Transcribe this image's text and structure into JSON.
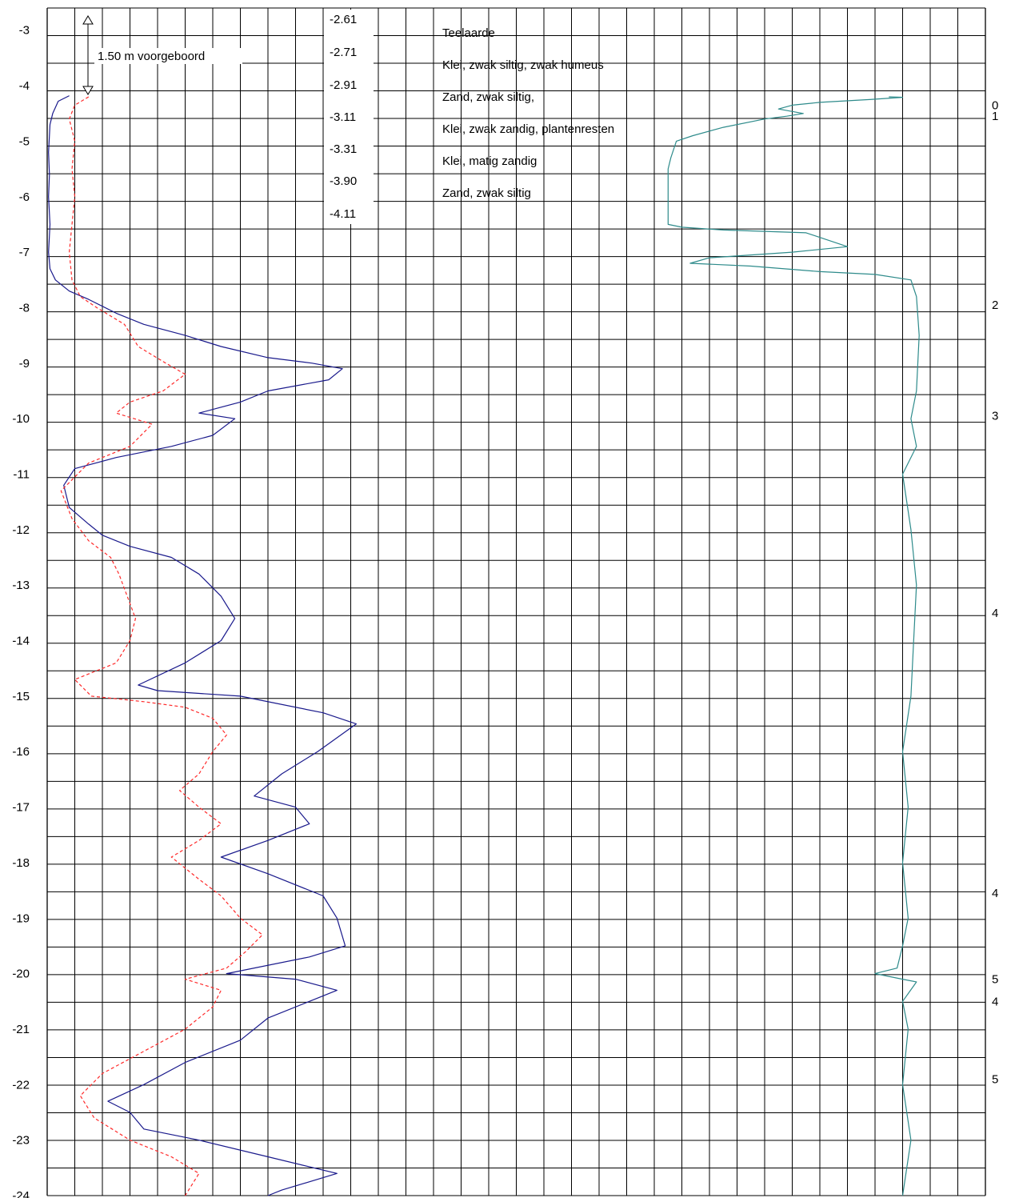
{
  "chart_data": {
    "type": "line",
    "title": "",
    "xlabel": "",
    "ylabel": "",
    "ylim": [
      -24,
      -2.6
    ],
    "y_ticks": [
      -3,
      -4,
      -5,
      -6,
      -7,
      -8,
      -9,
      -10,
      -11,
      -12,
      -13,
      -14,
      -15,
      -16,
      -17,
      -18,
      -19,
      -20,
      -21,
      -22,
      -23,
      -24
    ],
    "grid": true,
    "predrill_label": "1.50  m voorgeboord",
    "layer_levels": [
      "-2.61",
      "-2.71",
      "-2.91",
      "-3.11",
      "-3.31",
      "-3.90",
      "-4.11"
    ],
    "layer_descriptions": [
      "Teelaarde",
      "Klei, zwak siltig, zwak humeus",
      "Zand, zwak siltig,",
      "Klei, zwak zandig, plantenresten",
      "Klei, matig zandig",
      "Zand, zwak siltig"
    ],
    "right_labels": [
      {
        "text": "0",
        "y": -4.35
      },
      {
        "text": "1",
        "y": -4.55
      },
      {
        "text": "2",
        "y": -7.95
      },
      {
        "text": "3",
        "y": -9.95
      },
      {
        "text": "4",
        "y": -13.5
      },
      {
        "text": "4",
        "y": -18.55
      },
      {
        "text": "5",
        "y": -20.1
      },
      {
        "text": "4",
        "y": -20.5
      },
      {
        "text": "5",
        "y": -21.9
      }
    ],
    "series": [
      {
        "color": "#1a1a8c",
        "style": "solid",
        "points": [
          [
            0.8,
            -4.18
          ],
          [
            0.4,
            -4.28
          ],
          [
            0.2,
            -4.5
          ],
          [
            0.1,
            -4.7
          ],
          [
            0.05,
            -5.2
          ],
          [
            0.08,
            -5.6
          ],
          [
            0.05,
            -6.0
          ],
          [
            0.1,
            -6.5
          ],
          [
            0.05,
            -7.0
          ],
          [
            0.1,
            -7.3
          ],
          [
            0.3,
            -7.5
          ],
          [
            0.8,
            -7.7
          ],
          [
            1.5,
            -7.85
          ],
          [
            2.5,
            -8.1
          ],
          [
            3.5,
            -8.3
          ],
          [
            5.0,
            -8.5
          ],
          [
            6.3,
            -8.7
          ],
          [
            8.0,
            -8.9
          ],
          [
            9.6,
            -9.0
          ],
          [
            10.7,
            -9.1
          ],
          [
            10.2,
            -9.3
          ],
          [
            8.0,
            -9.5
          ],
          [
            7.0,
            -9.7
          ],
          [
            5.5,
            -9.9
          ],
          [
            6.8,
            -10.0
          ],
          [
            6.0,
            -10.3
          ],
          [
            4.5,
            -10.5
          ],
          [
            2.5,
            -10.7
          ],
          [
            1.0,
            -10.9
          ],
          [
            0.6,
            -11.2
          ],
          [
            0.8,
            -11.6
          ],
          [
            1.5,
            -11.9
          ],
          [
            2.0,
            -12.1
          ],
          [
            3.0,
            -12.3
          ],
          [
            4.5,
            -12.5
          ],
          [
            5.5,
            -12.8
          ],
          [
            6.3,
            -13.2
          ],
          [
            6.8,
            -13.6
          ],
          [
            6.3,
            -14.0
          ],
          [
            5.0,
            -14.4
          ],
          [
            3.3,
            -14.8
          ],
          [
            4.0,
            -14.9
          ],
          [
            7.0,
            -15.0
          ],
          [
            10.0,
            -15.3
          ],
          [
            11.2,
            -15.5
          ],
          [
            9.8,
            -16.0
          ],
          [
            8.5,
            -16.4
          ],
          [
            7.5,
            -16.8
          ],
          [
            9.0,
            -17.0
          ],
          [
            9.5,
            -17.3
          ],
          [
            8.0,
            -17.6
          ],
          [
            6.3,
            -17.9
          ],
          [
            8.0,
            -18.2
          ],
          [
            10.0,
            -18.6
          ],
          [
            10.5,
            -19.0
          ],
          [
            10.8,
            -19.5
          ],
          [
            9.5,
            -19.7
          ],
          [
            6.5,
            -20.0
          ],
          [
            9.0,
            -20.1
          ],
          [
            10.5,
            -20.3
          ],
          [
            9.5,
            -20.5
          ],
          [
            8.0,
            -20.8
          ],
          [
            7.0,
            -21.2
          ],
          [
            5.0,
            -21.6
          ],
          [
            3.5,
            -22.0
          ],
          [
            2.2,
            -22.3
          ],
          [
            3.0,
            -22.5
          ],
          [
            3.5,
            -22.8
          ],
          [
            5.5,
            -23.0
          ],
          [
            8.0,
            -23.3
          ],
          [
            10.5,
            -23.6
          ],
          [
            8.5,
            -23.9
          ],
          [
            8.0,
            -24.0
          ]
        ]
      },
      {
        "color": "#ff2a2a",
        "style": "dashed",
        "points": [
          [
            1.5,
            -4.2
          ],
          [
            1.0,
            -4.35
          ],
          [
            0.8,
            -4.6
          ],
          [
            1.0,
            -5.0
          ],
          [
            0.9,
            -5.5
          ],
          [
            1.0,
            -6.0
          ],
          [
            0.9,
            -6.5
          ],
          [
            0.8,
            -7.0
          ],
          [
            0.9,
            -7.5
          ],
          [
            1.2,
            -7.8
          ],
          [
            1.8,
            -8.0
          ],
          [
            2.8,
            -8.3
          ],
          [
            3.3,
            -8.7
          ],
          [
            4.3,
            -9.0
          ],
          [
            5.0,
            -9.2
          ],
          [
            4.2,
            -9.5
          ],
          [
            3.0,
            -9.7
          ],
          [
            2.5,
            -9.9
          ],
          [
            3.8,
            -10.1
          ],
          [
            3.0,
            -10.5
          ],
          [
            1.5,
            -10.8
          ],
          [
            0.5,
            -11.3
          ],
          [
            0.9,
            -11.8
          ],
          [
            1.5,
            -12.2
          ],
          [
            2.3,
            -12.5
          ],
          [
            2.6,
            -12.8
          ],
          [
            2.9,
            -13.2
          ],
          [
            3.2,
            -13.6
          ],
          [
            3.0,
            -14.0
          ],
          [
            2.5,
            -14.4
          ],
          [
            1.0,
            -14.7
          ],
          [
            1.6,
            -15.0
          ],
          [
            3.5,
            -15.1
          ],
          [
            5.0,
            -15.2
          ],
          [
            6.0,
            -15.4
          ],
          [
            6.5,
            -15.7
          ],
          [
            6.0,
            -16.0
          ],
          [
            5.5,
            -16.4
          ],
          [
            4.8,
            -16.7
          ],
          [
            5.5,
            -17.0
          ],
          [
            6.3,
            -17.3
          ],
          [
            5.5,
            -17.6
          ],
          [
            4.5,
            -17.9
          ],
          [
            5.5,
            -18.3
          ],
          [
            6.3,
            -18.6
          ],
          [
            7.0,
            -19.0
          ],
          [
            7.8,
            -19.3
          ],
          [
            7.2,
            -19.6
          ],
          [
            6.5,
            -19.9
          ],
          [
            5.0,
            -20.1
          ],
          [
            6.3,
            -20.3
          ],
          [
            6.0,
            -20.6
          ],
          [
            5.0,
            -21.0
          ],
          [
            3.5,
            -21.4
          ],
          [
            2.0,
            -21.8
          ],
          [
            1.2,
            -22.2
          ],
          [
            1.7,
            -22.6
          ],
          [
            3.0,
            -23.0
          ],
          [
            4.5,
            -23.3
          ],
          [
            5.5,
            -23.6
          ],
          [
            5.0,
            -24.0
          ]
        ]
      },
      {
        "color": "#2e8b8b",
        "style": "solid",
        "points": [
          [
            30.5,
            -4.2
          ],
          [
            31.0,
            -4.21
          ],
          [
            29.8,
            -4.25
          ],
          [
            28.0,
            -4.3
          ],
          [
            27.0,
            -4.35
          ],
          [
            26.5,
            -4.42
          ],
          [
            27.4,
            -4.5
          ],
          [
            26.8,
            -4.55
          ],
          [
            26.0,
            -4.6
          ],
          [
            24.5,
            -4.75
          ],
          [
            23.4,
            -4.9
          ],
          [
            22.8,
            -5.0
          ],
          [
            22.6,
            -5.3
          ],
          [
            22.5,
            -5.5
          ],
          [
            22.5,
            -6.5
          ],
          [
            23.0,
            -6.55
          ],
          [
            24.5,
            -6.6
          ],
          [
            27.5,
            -6.65
          ],
          [
            29.0,
            -6.9
          ],
          [
            27.0,
            -7.0
          ],
          [
            24.0,
            -7.1
          ],
          [
            23.3,
            -7.2
          ],
          [
            25.5,
            -7.25
          ],
          [
            28.0,
            -7.35
          ],
          [
            30.0,
            -7.4
          ],
          [
            31.3,
            -7.5
          ],
          [
            31.5,
            -7.8
          ],
          [
            31.6,
            -8.5
          ],
          [
            31.5,
            -9.5
          ],
          [
            31.3,
            -10.0
          ],
          [
            31.5,
            -10.5
          ],
          [
            31.0,
            -11.0
          ],
          [
            31.3,
            -12.0
          ],
          [
            31.5,
            -13.0
          ],
          [
            31.4,
            -14.0
          ],
          [
            31.3,
            -15.0
          ],
          [
            31.0,
            -16.0
          ],
          [
            31.2,
            -17.0
          ],
          [
            31.0,
            -18.0
          ],
          [
            31.2,
            -19.0
          ],
          [
            31.0,
            -19.5
          ],
          [
            30.8,
            -19.9
          ],
          [
            30.0,
            -20.0
          ],
          [
            31.0,
            -20.1
          ],
          [
            31.5,
            -20.15
          ],
          [
            31.0,
            -20.5
          ],
          [
            31.2,
            -21.0
          ],
          [
            31.0,
            -22.0
          ],
          [
            31.3,
            -23.0
          ],
          [
            31.0,
            -24.0
          ]
        ]
      }
    ]
  }
}
